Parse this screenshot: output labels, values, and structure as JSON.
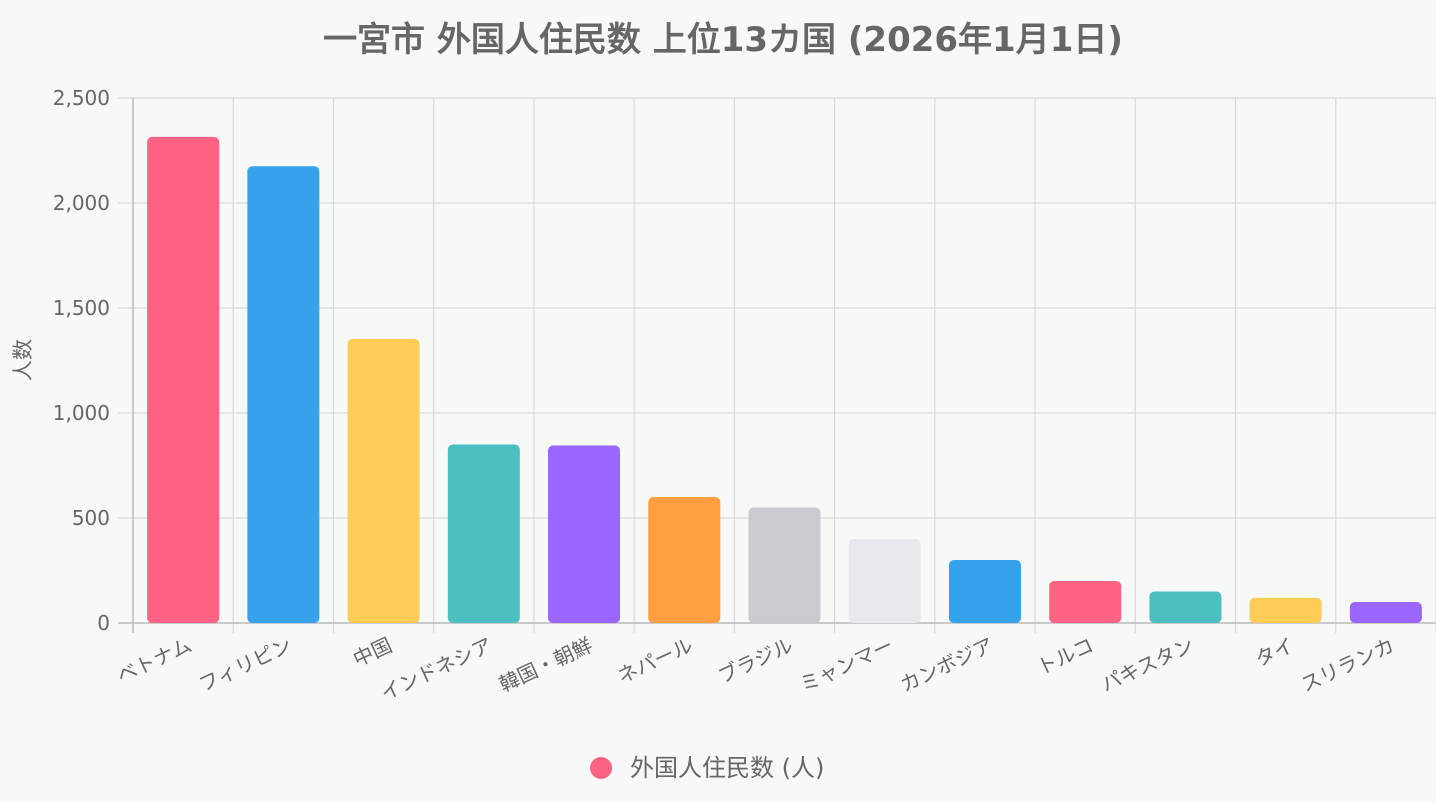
{
  "chart_data": {
    "type": "bar",
    "title": "一宮市 外国人住民数 上位13カ国 (2026年1月1日)",
    "xlabel": "",
    "ylabel": "人数",
    "ylim": [
      0,
      2500
    ],
    "yticks": [
      0,
      500,
      1000,
      1500,
      2000,
      2500
    ],
    "ytick_labels": [
      "0",
      "500",
      "1,000",
      "1,500",
      "2,000",
      "2,500"
    ],
    "grid": true,
    "legend_position": "bottom",
    "categories": [
      "ベトナム",
      "フィリピン",
      "中国",
      "インドネシア",
      "韓国・朝鮮",
      "ネパール",
      "ブラジル",
      "ミャンマー",
      "カンボジア",
      "トルコ",
      "パキスタン",
      "タイ",
      "スリランカ"
    ],
    "series": [
      {
        "name": "外国人住民数 (人)",
        "legend_color": "#ff6384",
        "values": [
          2315,
          2175,
          1353,
          850,
          845,
          600,
          550,
          400,
          300,
          200,
          150,
          120,
          100
        ],
        "colors": [
          "#ff6384",
          "#36a2eb",
          "#ffcd56",
          "#4bc0c0",
          "#9966ff",
          "#ff9f40",
          "#c9cbcf",
          "#e7e8ec",
          "#36a2eb",
          "#ff6384",
          "#4bc0c0",
          "#ffcd56",
          "#9966ff"
        ]
      }
    ]
  }
}
